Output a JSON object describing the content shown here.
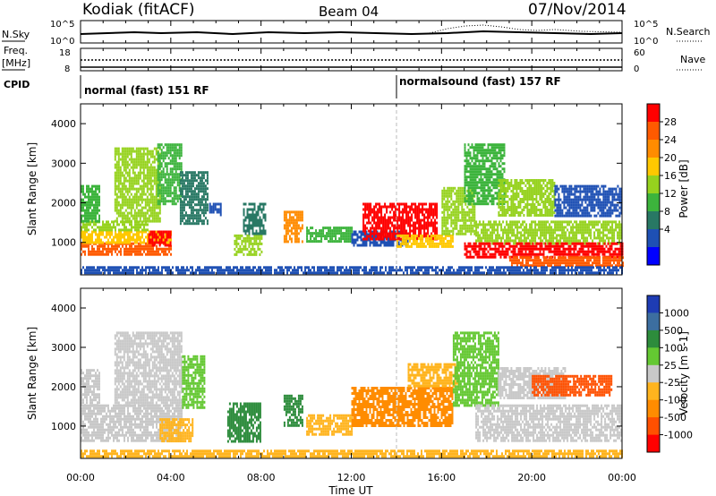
{
  "header": {
    "station": "Kodiak (fitACF)",
    "beam": "Beam 04",
    "date": "07/Nov/2014"
  },
  "sky_panel": {
    "left_label": "N.Sky",
    "right_label": "N.Search",
    "left_ticks": [
      "10^5",
      "10^0"
    ],
    "right_ticks": [
      "10^5",
      "10^0"
    ]
  },
  "freq_panel": {
    "left_label_1": "Freq.",
    "left_label_2": "[MHz]",
    "right_label": "Nave",
    "left_ticks": [
      "18",
      "8"
    ],
    "right_ticks": [
      "60",
      "0"
    ]
  },
  "cpid_panel": {
    "label": "CPID",
    "segments": [
      {
        "label": "normal (fast) 151 RF",
        "start_h": 0,
        "end_h": 14
      },
      {
        "label": "normalsound (fast) 157 RF",
        "start_h": 14,
        "end_h": 24
      }
    ]
  },
  "time_axis": {
    "label": "Time UT",
    "tick_labels": [
      "00:00",
      "04:00",
      "08:00",
      "12:00",
      "16:00",
      "20:00",
      "00:00"
    ]
  },
  "power_colorbar": {
    "label": "Power [dB]",
    "tick_labels": [
      "28",
      "24",
      "20",
      "16",
      "12",
      "8",
      "4"
    ],
    "colors": [
      "#ff0000",
      "#ff5a00",
      "#ff8c00",
      "#ffc800",
      "#96d21e",
      "#3cb43c",
      "#287864",
      "#1e50b4",
      "#0000ff"
    ]
  },
  "velocity_colorbar": {
    "label": "Velocity [m s-1]",
    "tick_labels": [
      "1000",
      "500",
      "100",
      "25",
      "-25",
      "-100",
      "-500",
      "-1000"
    ],
    "colors": [
      "#1e3cb4",
      "#3c6ea0",
      "#2d8c3c",
      "#64c832",
      "#c8c8c8",
      "#ffb41e",
      "#ff8c00",
      "#ff5000",
      "#ff0000"
    ]
  },
  "chart_data": [
    {
      "type": "heatmap",
      "name": "power",
      "ylabel": "Slant Range [km]",
      "xlabel": "Time UT",
      "xlim": [
        0,
        24
      ],
      "ylim": [
        180,
        4500
      ],
      "y_ticks": [
        "1000",
        "2000",
        "3000",
        "4000"
      ],
      "y_tick_values": [
        1000,
        2000,
        3000,
        4000
      ],
      "regions": [
        {
          "t0": 0.0,
          "t1": 4.0,
          "r0": 700,
          "r1": 1000,
          "c": "#ff5a00"
        },
        {
          "t0": 0.0,
          "t1": 4.0,
          "r0": 1000,
          "r1": 1300,
          "c": "#ffc800"
        },
        {
          "t0": 0.0,
          "t1": 3.0,
          "r0": 1300,
          "r1": 1550,
          "c": "#96d21e"
        },
        {
          "t0": 0.0,
          "t1": 0.8,
          "r0": 1550,
          "r1": 2450,
          "c": "#3cb43c"
        },
        {
          "t0": 1.5,
          "t1": 3.5,
          "r0": 1550,
          "r1": 3400,
          "c": "#96d21e"
        },
        {
          "t0": 3.4,
          "t1": 4.5,
          "r0": 2000,
          "r1": 3500,
          "c": "#3cb43c"
        },
        {
          "t0": 4.4,
          "t1": 5.6,
          "r0": 1500,
          "r1": 2800,
          "c": "#287864"
        },
        {
          "t0": 5.7,
          "t1": 6.2,
          "r0": 1700,
          "r1": 2000,
          "c": "#1e50b4"
        },
        {
          "t0": 3.0,
          "t1": 4.0,
          "r0": 900,
          "r1": 1300,
          "c": "#ff0000"
        },
        {
          "t0": 6.8,
          "t1": 8.0,
          "r0": 700,
          "r1": 1200,
          "c": "#96d21e"
        },
        {
          "t0": 7.2,
          "t1": 8.2,
          "r0": 1200,
          "r1": 2000,
          "c": "#287864"
        },
        {
          "t0": 9.0,
          "t1": 9.8,
          "r0": 1000,
          "r1": 1800,
          "c": "#ff8c00"
        },
        {
          "t0": 10.0,
          "t1": 12.0,
          "r0": 1000,
          "r1": 1400,
          "c": "#3cb43c"
        },
        {
          "t0": 12.0,
          "t1": 14.5,
          "r0": 900,
          "r1": 1300,
          "c": "#1e50b4"
        },
        {
          "t0": 12.5,
          "t1": 15.8,
          "r0": 1100,
          "r1": 2000,
          "c": "#ff0000"
        },
        {
          "t0": 14.0,
          "t1": 16.5,
          "r0": 900,
          "r1": 1200,
          "c": "#ffc800"
        },
        {
          "t0": 16.0,
          "t1": 17.5,
          "r0": 1200,
          "r1": 2400,
          "c": "#96d21e"
        },
        {
          "t0": 17.0,
          "t1": 18.8,
          "r0": 2000,
          "r1": 3500,
          "c": "#3cb43c"
        },
        {
          "t0": 18.5,
          "t1": 21.0,
          "r0": 1700,
          "r1": 2600,
          "c": "#96d21e"
        },
        {
          "t0": 17.5,
          "t1": 24.0,
          "r0": 1000,
          "r1": 1550,
          "c": "#96d21e"
        },
        {
          "t0": 17.0,
          "t1": 24.0,
          "r0": 650,
          "r1": 1000,
          "c": "#ff0000"
        },
        {
          "t0": 19.0,
          "t1": 24.0,
          "r0": 400,
          "r1": 650,
          "c": "#ff5a00"
        },
        {
          "t0": 21.0,
          "t1": 24.0,
          "r0": 1700,
          "r1": 2450,
          "c": "#1e50b4"
        },
        {
          "t0": 0.0,
          "t1": 24.0,
          "r0": 250,
          "r1": 400,
          "c": "#1e50b4"
        }
      ]
    },
    {
      "type": "heatmap",
      "name": "velocity",
      "ylabel": "Slant Range [km]",
      "xlabel": "Time UT",
      "xlim": [
        0,
        24
      ],
      "ylim": [
        180,
        4500
      ],
      "y_ticks": [
        "1000",
        "2000",
        "3000",
        "4000"
      ],
      "y_tick_values": [
        1000,
        2000,
        3000,
        4000
      ],
      "regions": [
        {
          "t0": 0.0,
          "t1": 4.5,
          "r0": 600,
          "r1": 1550,
          "c": "#c8c8c8"
        },
        {
          "t0": 0.0,
          "t1": 0.8,
          "r0": 1550,
          "r1": 2450,
          "c": "#c8c8c8"
        },
        {
          "t0": 1.5,
          "t1": 4.5,
          "r0": 1550,
          "r1": 3400,
          "c": "#c8c8c8"
        },
        {
          "t0": 3.5,
          "t1": 5.0,
          "r0": 600,
          "r1": 1200,
          "c": "#ffb41e"
        },
        {
          "t0": 4.5,
          "t1": 5.5,
          "r0": 1500,
          "r1": 2800,
          "c": "#64c832"
        },
        {
          "t0": 6.5,
          "t1": 8.0,
          "r0": 600,
          "r1": 1600,
          "c": "#2d8c3c"
        },
        {
          "t0": 9.0,
          "t1": 9.8,
          "r0": 1000,
          "r1": 1800,
          "c": "#2d8c3c"
        },
        {
          "t0": 10.0,
          "t1": 12.0,
          "r0": 800,
          "r1": 1300,
          "c": "#ffb41e"
        },
        {
          "t0": 12.0,
          "t1": 16.5,
          "r0": 1000,
          "r1": 2000,
          "c": "#ff8c00"
        },
        {
          "t0": 14.5,
          "t1": 16.8,
          "r0": 2000,
          "r1": 2600,
          "c": "#ffb41e"
        },
        {
          "t0": 16.5,
          "t1": 18.5,
          "r0": 1500,
          "r1": 3400,
          "c": "#64c832"
        },
        {
          "t0": 17.5,
          "t1": 24.0,
          "r0": 600,
          "r1": 1550,
          "c": "#c8c8c8"
        },
        {
          "t0": 18.5,
          "t1": 21.5,
          "r0": 1700,
          "r1": 2500,
          "c": "#c8c8c8"
        },
        {
          "t0": 20.0,
          "t1": 23.5,
          "r0": 1800,
          "r1": 2300,
          "c": "#ff5000"
        },
        {
          "t0": 0.0,
          "t1": 24.0,
          "r0": 250,
          "r1": 400,
          "c": "#ffb41e"
        }
      ]
    }
  ]
}
